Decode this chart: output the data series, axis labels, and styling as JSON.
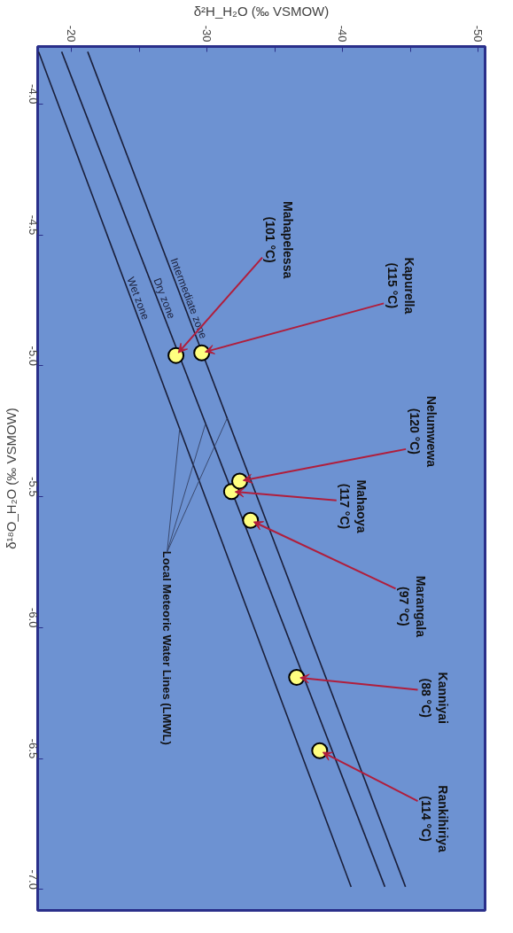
{
  "chart_data": {
    "type": "scatter",
    "xlabel": "δ²H_H₂O (‰ VSMOW)",
    "ylabel": "δ¹⁸O_H₂O (‰ VSMOW)",
    "xlim": [
      -17.5,
      -50.5
    ],
    "xticks": [
      -20,
      {
        "value": -25,
        "label": null
      },
      -30,
      {
        "value": -35,
        "label": null
      },
      -40,
      {
        "value": -45,
        "label": null
      },
      -50
    ],
    "ylim": [
      -7.08,
      -3.78
    ],
    "yticks": [
      {
        "value": -4,
        "label": "-4.0"
      },
      -4.5,
      {
        "value": -5,
        "label": "-5.0"
      },
      -5.5,
      {
        "value": -6,
        "label": "-6.0"
      },
      -6.5,
      {
        "value": -7,
        "label": "-7.0"
      }
    ],
    "grid": false,
    "legend": false,
    "series": [
      {
        "type": "line",
        "name": "Wet zone",
        "color": "#1a1f3a",
        "x": [
          -17.57,
          -40.62
        ],
        "values": [
          -3.8,
          -6.99
        ]
      },
      {
        "type": "line",
        "name": "Dry zone",
        "color": "#1a1f3a",
        "x": [
          -19.27,
          -43.11
        ],
        "values": [
          -3.8,
          -6.99
        ]
      },
      {
        "type": "line",
        "name": "Intermediate zone",
        "color": "#1a1f3a",
        "x": [
          -21.19,
          -44.63
        ],
        "values": [
          -3.8,
          -6.99
        ]
      },
      {
        "marker": "circle",
        "color": "#ffff80",
        "x": [
          -27.7,
          -29.6,
          -31.8,
          -32.4,
          -33.2,
          -36.6,
          -38.3
        ],
        "values": [
          -4.96,
          -4.95,
          -5.48,
          -5.44,
          -5.59,
          -6.19,
          -6.47
        ]
      }
    ],
    "annotations": [
      {
        "text": "Mahapelessa\n(101 °C)",
        "x": -27.7,
        "y": -4.96
      },
      {
        "text": "Kapurella\n(115 °C)",
        "x": -29.6,
        "y": -4.95
      },
      {
        "text": "Nelumwewa\n(120 °C)",
        "x": -32.4,
        "y": -5.44
      },
      {
        "text": "Mahaoya\n(117 °C)",
        "x": -31.8,
        "y": -5.48
      },
      {
        "text": "Marangala\n(97 °C)",
        "x": -33.2,
        "y": -5.59
      },
      {
        "text": "Kanniyai\n(88 °C)",
        "x": -36.6,
        "y": -6.19
      },
      {
        "text": "Rankihiriya\n(114 °C)",
        "x": -38.3,
        "y": -6.47
      },
      {
        "text": "Local Meteoric Water Lines (LMWL)",
        "x": -29.6,
        "y": -5.22
      }
    ]
  }
}
